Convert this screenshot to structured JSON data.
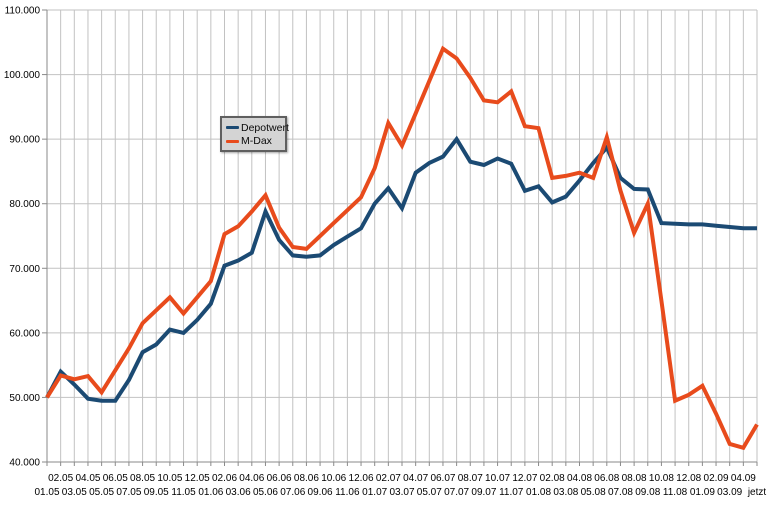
{
  "chart_data": {
    "type": "line",
    "title": "",
    "xlabel": "",
    "ylabel": "",
    "grid": true,
    "legend_position": "inner-top-left",
    "y_min": 40000,
    "y_max": 110000,
    "y_step": 10000,
    "y_tick_labels": [
      "40.000",
      "50.000",
      "60.000",
      "70.000",
      "80.000",
      "90.000",
      "100.000",
      "110.000"
    ],
    "x_labels": [
      "01.05",
      "02.05",
      "03.05",
      "04.05",
      "05.05",
      "06.05",
      "07.05",
      "08.05",
      "09.05",
      "10.05",
      "11.05",
      "12.05",
      "01.06",
      "02.06",
      "03.06",
      "04.06",
      "05.06",
      "06.06",
      "07.06",
      "08.06",
      "09.06",
      "10.06",
      "11.06",
      "12.06",
      "01.07",
      "02.07",
      "03.07",
      "04.07",
      "05.07",
      "06.07",
      "07.07",
      "08.07",
      "09.07",
      "10.07",
      "11.07",
      "12.07",
      "01.08",
      "02.08",
      "03.08",
      "04.08",
      "05.08",
      "06.08",
      "07.08",
      "08.08",
      "09.08",
      "10.08",
      "11.08",
      "12.08",
      "01.09",
      "02.09",
      "03.09",
      "04.09",
      "jetzt"
    ],
    "series": [
      {
        "name": "Depotwert",
        "color": "#1B4A73",
        "values": [
          50000,
          54000,
          52000,
          49800,
          49500,
          49500,
          52700,
          57000,
          58200,
          60500,
          60000,
          62000,
          64500,
          70400,
          71200,
          72400,
          78800,
          74400,
          72000,
          71800,
          72000,
          73600,
          74900,
          76200,
          80000,
          82400,
          79300,
          84800,
          86300,
          87300,
          90000,
          86500,
          86000,
          87000,
          86200,
          82000,
          82700,
          80200,
          81100,
          83600,
          86300,
          88700,
          84000,
          82300,
          82200,
          77000,
          76900,
          76800,
          76800,
          76600,
          76400,
          76200,
          76200
        ]
      },
      {
        "name": "M-Dax",
        "color": "#E84B1C",
        "values": [
          50000,
          53400,
          52800,
          53300,
          50800,
          54200,
          57600,
          61500,
          63500,
          65500,
          63000,
          65500,
          68000,
          75300,
          76500,
          78800,
          81300,
          76300,
          73300,
          73000,
          75000,
          77000,
          79000,
          81000,
          85500,
          92500,
          89000,
          94000,
          99000,
          104000,
          102500,
          99500,
          96000,
          95700,
          97400,
          92000,
          91700,
          84000,
          84300,
          84800,
          84000,
          90300,
          82000,
          75500,
          80000,
          65000,
          49500,
          50400,
          51800,
          47500,
          42800,
          42200,
          45800
        ]
      }
    ]
  },
  "colors": {
    "background": "#ffffff",
    "gridline": "#c2c2c2",
    "axis": "#8a8a8a",
    "tick": "#8a8a8a",
    "label_text": "#000000",
    "legend_background": "#d4d4d4",
    "legend_border": "#5f5f5f"
  }
}
